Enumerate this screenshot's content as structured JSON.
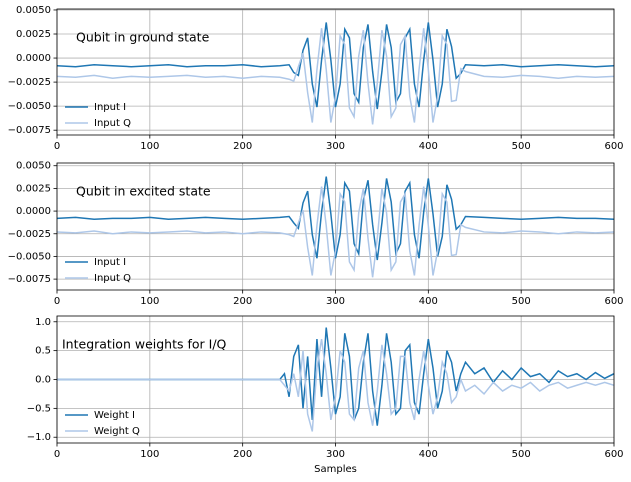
{
  "chart_data": [
    {
      "type": "line",
      "title": "Qubit in ground state",
      "legend": "lower left",
      "grid": true,
      "x": [
        0,
        20,
        40,
        60,
        80,
        100,
        120,
        140,
        160,
        180,
        200,
        220,
        240,
        250,
        255,
        260,
        265,
        270,
        275,
        280,
        285,
        290,
        295,
        300,
        305,
        310,
        315,
        320,
        325,
        330,
        335,
        340,
        345,
        350,
        355,
        360,
        365,
        370,
        375,
        380,
        385,
        390,
        395,
        400,
        405,
        410,
        415,
        420,
        425,
        430,
        435,
        440,
        460,
        480,
        500,
        520,
        540,
        560,
        580,
        600
      ],
      "series": [
        {
          "name": "Input I",
          "color": "#1f77b4",
          "values": [
            -0.0008,
            -0.0009,
            -0.0007,
            -0.0008,
            -0.0009,
            -0.0008,
            -0.0007,
            -0.0009,
            -0.0008,
            -0.0008,
            -0.0007,
            -0.0009,
            -0.0008,
            -0.0007,
            -0.0015,
            -0.0018,
            0.0008,
            0.0021,
            -0.0027,
            -0.0051,
            -0.0002,
            0.0037,
            -0.0002,
            -0.0051,
            -0.0027,
            0.003,
            0.0021,
            -0.0037,
            -0.0046,
            0.0011,
            0.0035,
            -0.0014,
            -0.0053,
            -0.0014,
            0.0035,
            0.0011,
            -0.0046,
            -0.0037,
            0.0021,
            0.003,
            -0.0027,
            -0.0051,
            -0.0002,
            0.0037,
            -0.0002,
            -0.0051,
            -0.0027,
            0.003,
            0.0012,
            -0.0021,
            -0.0016,
            -0.0007,
            -0.0008,
            -0.0007,
            -0.0009,
            -0.0008,
            -0.0007,
            -0.0008,
            -0.0009,
            -0.0008
          ]
        },
        {
          "name": "Input Q",
          "color": "#aec7e8",
          "values": [
            -0.0019,
            -0.002,
            -0.0018,
            -0.0021,
            -0.0019,
            -0.002,
            -0.0019,
            -0.0018,
            -0.002,
            -0.0019,
            -0.0021,
            -0.0019,
            -0.002,
            -0.0022,
            -0.0024,
            -0.0009,
            0.0005,
            -0.0036,
            -0.0067,
            -0.0012,
            0.0031,
            -0.0012,
            -0.0067,
            -0.004,
            0.0023,
            0.0014,
            -0.0052,
            -0.0061,
            0.0002,
            0.0029,
            -0.0026,
            -0.0069,
            -0.0026,
            0.0029,
            0.0002,
            -0.0061,
            -0.0052,
            0.0014,
            0.0023,
            -0.004,
            -0.0067,
            -0.0012,
            0.0031,
            -0.0012,
            -0.0067,
            -0.004,
            0.0023,
            0.0014,
            -0.0045,
            -0.0044,
            -0.0011,
            -0.0014,
            -0.0019,
            -0.002,
            -0.0018,
            -0.0019,
            -0.0021,
            -0.0019,
            -0.002,
            -0.0019
          ]
        }
      ],
      "xlim": [
        0,
        600
      ],
      "xticks": [
        0,
        100,
        200,
        300,
        400,
        500,
        600
      ],
      "ylim": [
        -0.008,
        0.0051
      ],
      "yticks": [
        {
          "value": -0.0075,
          "label": "−0.0075"
        },
        {
          "value": -0.005,
          "label": "−0.0050"
        },
        {
          "value": -0.0025,
          "label": "−0.0025"
        },
        {
          "value": 0,
          "label": "0.0000"
        },
        {
          "value": 0.0025,
          "label": "0.0025"
        },
        {
          "value": 0.005,
          "label": "0.0050"
        }
      ]
    },
    {
      "type": "line",
      "title": "Qubit in excited state",
      "legend": "lower left",
      "grid": true,
      "x": [
        0,
        20,
        40,
        60,
        80,
        100,
        120,
        140,
        160,
        180,
        200,
        220,
        240,
        250,
        255,
        260,
        265,
        270,
        275,
        280,
        285,
        290,
        295,
        300,
        305,
        310,
        315,
        320,
        325,
        330,
        335,
        340,
        345,
        350,
        355,
        360,
        365,
        370,
        375,
        380,
        385,
        390,
        395,
        400,
        405,
        410,
        415,
        420,
        425,
        430,
        435,
        440,
        460,
        480,
        500,
        520,
        540,
        560,
        580,
        600
      ],
      "series": [
        {
          "name": "Input I",
          "color": "#1f77b4",
          "values": [
            -0.0008,
            -0.0007,
            -0.0009,
            -0.0008,
            -0.0008,
            -0.0007,
            -0.0009,
            -0.0008,
            -0.0007,
            -0.0008,
            -0.0009,
            -0.0008,
            -0.0007,
            -0.0006,
            -0.0013,
            -0.0019,
            0.0009,
            0.0022,
            -0.0026,
            -0.0052,
            -0.0001,
            0.0038,
            -0.0003,
            -0.0052,
            -0.0026,
            0.0031,
            0.0022,
            -0.0036,
            -0.0047,
            0.0012,
            0.0034,
            -0.0015,
            -0.0054,
            -0.0013,
            0.0036,
            0.001,
            -0.0047,
            -0.0036,
            0.0022,
            0.0031,
            -0.0026,
            -0.0052,
            -0.0001,
            0.0036,
            -0.0003,
            -0.005,
            -0.0028,
            0.0029,
            0.0013,
            -0.002,
            -0.0015,
            -0.0006,
            -0.0007,
            -0.0008,
            -0.0009,
            -0.0008,
            -0.0007,
            -0.0008,
            -0.0008,
            -0.0009
          ]
        },
        {
          "name": "Input Q",
          "color": "#aec7e8",
          "values": [
            -0.0023,
            -0.0024,
            -0.0022,
            -0.0025,
            -0.0023,
            -0.0024,
            -0.0023,
            -0.0022,
            -0.0024,
            -0.0023,
            -0.0025,
            -0.0023,
            -0.0024,
            -0.0026,
            -0.0028,
            -0.0013,
            0.0001,
            -0.004,
            -0.0071,
            -0.0016,
            0.0027,
            -0.0016,
            -0.0071,
            -0.0044,
            0.0019,
            0.001,
            -0.0056,
            -0.0065,
            -0.0002,
            0.0025,
            -0.003,
            -0.0073,
            -0.003,
            0.0025,
            -0.0002,
            -0.0065,
            -0.0056,
            0.001,
            0.0019,
            -0.0044,
            -0.0071,
            -0.0016,
            0.0027,
            -0.0016,
            -0.0071,
            -0.0044,
            0.0019,
            0.001,
            -0.0049,
            -0.0048,
            -0.0015,
            -0.0018,
            -0.0023,
            -0.0024,
            -0.0022,
            -0.0023,
            -0.0025,
            -0.0023,
            -0.0024,
            -0.0023
          ]
        }
      ],
      "xlim": [
        0,
        600
      ],
      "xticks": [
        0,
        100,
        200,
        300,
        400,
        500,
        600
      ],
      "ylim": [
        -0.0087,
        0.0053
      ],
      "yticks": [
        {
          "value": -0.0075,
          "label": "−0.0075"
        },
        {
          "value": -0.005,
          "label": "−0.0050"
        },
        {
          "value": -0.0025,
          "label": "−0.0025"
        },
        {
          "value": 0,
          "label": "0.0000"
        },
        {
          "value": 0.0025,
          "label": "0.0025"
        },
        {
          "value": 0.005,
          "label": "0.0050"
        }
      ]
    },
    {
      "type": "line",
      "title": "Integration weights for I/Q",
      "legend": "lower left",
      "grid": true,
      "xlabel": "Samples",
      "x": [
        0,
        240,
        245,
        250,
        255,
        260,
        265,
        270,
        275,
        280,
        285,
        290,
        295,
        300,
        305,
        310,
        315,
        320,
        325,
        330,
        335,
        340,
        345,
        350,
        355,
        360,
        365,
        370,
        375,
        380,
        385,
        390,
        395,
        400,
        405,
        410,
        415,
        420,
        425,
        430,
        435,
        440,
        450,
        460,
        470,
        480,
        490,
        500,
        510,
        520,
        530,
        540,
        550,
        560,
        570,
        580,
        590,
        600
      ],
      "series": [
        {
          "name": "Weight I",
          "color": "#1f77b4",
          "values": [
            0,
            0,
            0.1,
            -0.3,
            0.4,
            0.6,
            -0.5,
            0.4,
            -0.7,
            0.7,
            -0.3,
            0.9,
            0.2,
            -0.6,
            -0.3,
            0.8,
            0.4,
            -0.7,
            -0.5,
            0.3,
            0.8,
            -0.2,
            -0.8,
            -0.1,
            0.8,
            0.3,
            -0.6,
            -0.5,
            0.5,
            0.6,
            -0.4,
            -0.6,
            0.1,
            0.7,
            0.2,
            -0.5,
            -0.2,
            0.5,
            0.3,
            -0.2,
            0.1,
            0.3,
            0.1,
            0.2,
            -0.05,
            0.15,
            0,
            0.2,
            0.05,
            0.1,
            -0.05,
            0.15,
            0.05,
            0.1,
            0,
            0.12,
            0.02,
            0.1
          ]
        },
        {
          "name": "Weight Q",
          "color": "#aec7e8",
          "values": [
            0,
            0,
            -0.1,
            -0.2,
            0.1,
            -0.3,
            0.5,
            -0.6,
            -0.9,
            0.2,
            0.7,
            0.1,
            -0.7,
            -0.3,
            0.5,
            0.3,
            -0.6,
            -0.7,
            0.2,
            0.5,
            -0.4,
            -0.8,
            -0.2,
            0.6,
            0.1,
            -0.6,
            -0.5,
            0.4,
            0.4,
            -0.4,
            -0.7,
            0,
            0.5,
            -0.1,
            -0.6,
            -0.3,
            0.3,
            0.1,
            -0.4,
            -0.3,
            0,
            -0.2,
            -0.1,
            -0.25,
            -0.05,
            -0.2,
            -0.1,
            -0.15,
            -0.05,
            -0.2,
            -0.1,
            -0.05,
            -0.15,
            -0.1,
            -0.05,
            -0.1,
            -0.05,
            -0.1
          ]
        }
      ],
      "xlim": [
        0,
        600
      ],
      "xticks": [
        0,
        100,
        200,
        300,
        400,
        500,
        600
      ],
      "ylim": [
        -1.1,
        1.1
      ],
      "yticks": [
        {
          "value": -1,
          "label": "−1.0"
        },
        {
          "value": -0.5,
          "label": "−0.5"
        },
        {
          "value": 0,
          "label": "0.0"
        },
        {
          "value": 0.5,
          "label": "0.5"
        },
        {
          "value": 1,
          "label": "1.0"
        }
      ]
    }
  ]
}
